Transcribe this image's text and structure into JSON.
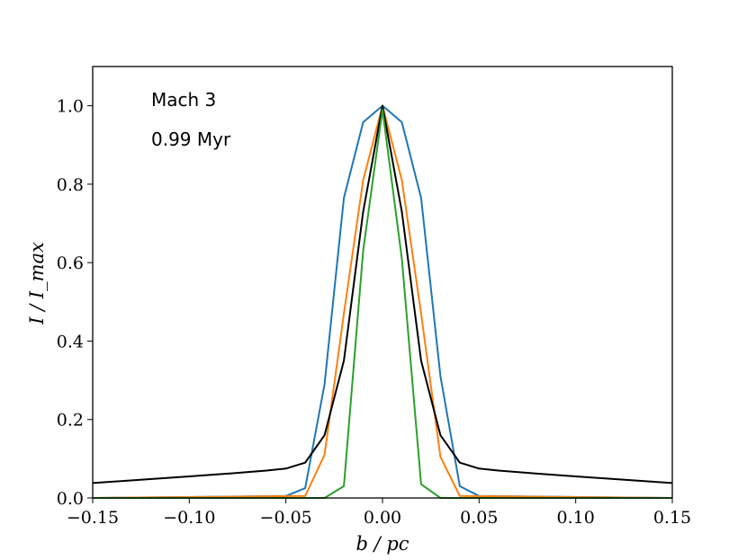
{
  "chart_data": {
    "type": "line",
    "title": "",
    "xlabel": "b / pc",
    "ylabel": "I / I_max",
    "xlim": [
      -0.15,
      0.15
    ],
    "ylim": [
      0.0,
      1.1
    ],
    "x_ticks": [
      -0.15,
      -0.1,
      -0.05,
      0.0,
      0.05,
      0.1,
      0.15
    ],
    "x_tick_labels": [
      "−0.15",
      "−0.10",
      "−0.05",
      "0.00",
      "0.05",
      "0.10",
      "0.15"
    ],
    "y_ticks": [
      0.0,
      0.2,
      0.4,
      0.6,
      0.8,
      1.0
    ],
    "y_tick_labels": [
      "0.0",
      "0.2",
      "0.4",
      "0.6",
      "0.8",
      "1.0"
    ],
    "grid": false,
    "legend": "none",
    "annotations": [
      "Mach 3",
      "0.99 Myr"
    ],
    "series": [
      {
        "color": "#1f77b4",
        "x": [
          -0.15,
          -0.05,
          -0.04,
          -0.03,
          -0.02,
          -0.01,
          0.0,
          0.01,
          0.02,
          0.03,
          0.04,
          0.05,
          0.15
        ],
        "y": [
          0.0,
          0.005,
          0.025,
          0.29,
          0.765,
          0.958,
          1.0,
          0.958,
          0.765,
          0.31,
          0.03,
          0.005,
          0.0
        ]
      },
      {
        "color": "#ff7f0e",
        "x": [
          -0.15,
          -0.04,
          -0.03,
          -0.02,
          -0.01,
          0.0,
          0.01,
          0.02,
          0.03,
          0.04,
          0.15
        ],
        "y": [
          0.0,
          0.005,
          0.11,
          0.47,
          0.81,
          1.0,
          0.81,
          0.47,
          0.105,
          0.005,
          0.0
        ]
      },
      {
        "color": "#000000",
        "x": [
          -0.15,
          -0.1,
          -0.08,
          -0.06,
          -0.05,
          -0.04,
          -0.03,
          -0.02,
          -0.01,
          0.0,
          0.01,
          0.02,
          0.03,
          0.04,
          0.05,
          0.06,
          0.08,
          0.1,
          0.15
        ],
        "y": [
          0.038,
          0.055,
          0.062,
          0.07,
          0.075,
          0.09,
          0.16,
          0.35,
          0.73,
          1.0,
          0.73,
          0.35,
          0.16,
          0.09,
          0.075,
          0.07,
          0.062,
          0.055,
          0.038
        ]
      },
      {
        "color": "#2ca02c",
        "x": [
          -0.15,
          -0.03,
          -0.02,
          -0.01,
          0.0,
          0.01,
          0.02,
          0.03,
          0.15
        ],
        "y": [
          0.0,
          0.0,
          0.03,
          0.63,
          0.99,
          0.61,
          0.035,
          0.0,
          0.0
        ]
      }
    ]
  }
}
